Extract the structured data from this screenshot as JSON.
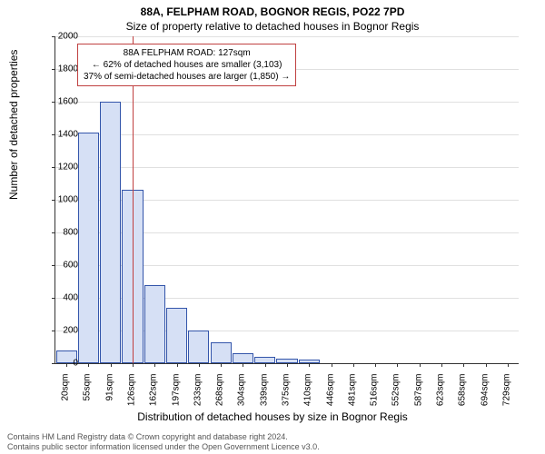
{
  "title": "88A, FELPHAM ROAD, BOGNOR REGIS, PO22 7PD",
  "subtitle": "Size of property relative to detached houses in Bognor Regis",
  "chart": {
    "type": "histogram",
    "ylabel": "Number of detached properties",
    "xlabel": "Distribution of detached houses by size in Bognor Regis",
    "ylim_max": 2000,
    "ytick_step": 200,
    "bar_fill": "#d6e0f5",
    "bar_border": "#3355aa",
    "grid_color": "#e0e0e0",
    "background_color": "#ffffff",
    "x_categories": [
      "20sqm",
      "55sqm",
      "91sqm",
      "126sqm",
      "162sqm",
      "197sqm",
      "233sqm",
      "268sqm",
      "304sqm",
      "339sqm",
      "375sqm",
      "410sqm",
      "446sqm",
      "481sqm",
      "516sqm",
      "552sqm",
      "587sqm",
      "623sqm",
      "658sqm",
      "694sqm",
      "729sqm"
    ],
    "values": [
      80,
      1410,
      1600,
      1060,
      480,
      340,
      200,
      130,
      60,
      40,
      30,
      20,
      0,
      0,
      0,
      0,
      0,
      0,
      0,
      0,
      0
    ],
    "reference_line_color": "#c04040",
    "reference_line_index": 3
  },
  "annotation": {
    "line1": "88A FELPHAM ROAD: 127sqm",
    "line2": "← 62% of detached houses are smaller (3,103)",
    "line3": "37% of semi-detached houses are larger (1,850) →",
    "border_color": "#c04040"
  },
  "footer": {
    "line1": "Contains HM Land Registry data © Crown copyright and database right 2024.",
    "line2": "Contains public sector information licensed under the Open Government Licence v3.0."
  }
}
